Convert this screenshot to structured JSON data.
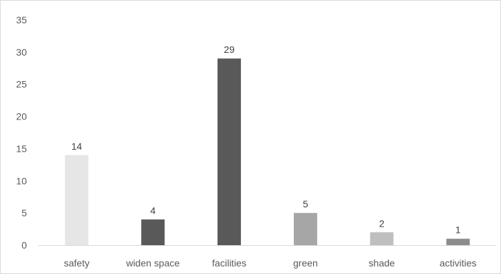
{
  "chart_data": {
    "type": "bar",
    "title": "",
    "xlabel": "",
    "ylabel": "",
    "categories": [
      "safety",
      "widen space",
      "facilities",
      "green",
      "shade",
      "activities"
    ],
    "values": [
      14,
      4,
      29,
      5,
      2,
      1
    ],
    "data_labels": [
      "14",
      "4",
      "29",
      "5",
      "2",
      "1"
    ],
    "bar_colors": [
      "#e6e6e6",
      "#595959",
      "#595959",
      "#a6a6a6",
      "#bfbfbf",
      "#8c8c8c"
    ],
    "ylim": [
      0,
      35
    ],
    "y_ticks": [
      0,
      5,
      10,
      15,
      20,
      25,
      30,
      35
    ],
    "y_tick_labels": [
      "0",
      "5",
      "10",
      "15",
      "20",
      "25",
      "30",
      "35"
    ],
    "grid": false,
    "legend": "none",
    "axis_color": "#d9d9d9",
    "text_color": "#595959"
  }
}
